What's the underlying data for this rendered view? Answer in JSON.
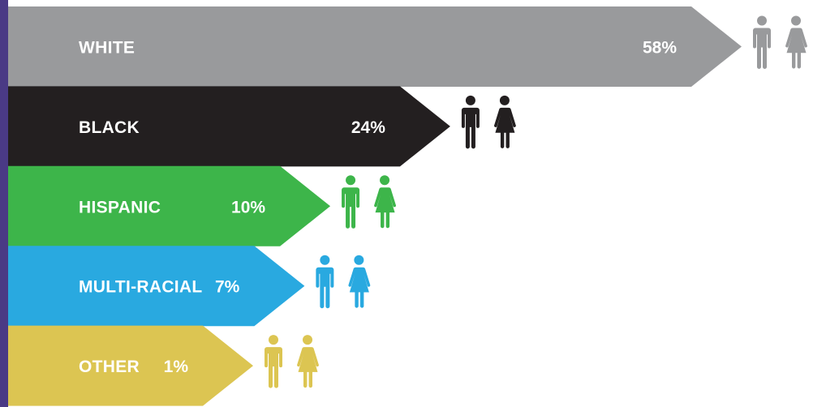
{
  "chart_data": {
    "type": "bar",
    "orientation": "horizontal",
    "unit": "%",
    "xlim": [
      0,
      58
    ],
    "categories": [
      "WHITE",
      "BLACK",
      "HISPANIC",
      "MULTI-RACIAL",
      "OTHER"
    ],
    "values": [
      58,
      24,
      10,
      7,
      1
    ],
    "value_labels": [
      "58%",
      "24%",
      "10%",
      "7%",
      "1%"
    ],
    "colors": [
      "#999a9c",
      "#231f20",
      "#3db54a",
      "#29a9e0",
      "#dcc552"
    ],
    "icons": [
      "man-icon",
      "woman-icon"
    ],
    "grid": false,
    "legend": "none"
  },
  "theme": {
    "accent": "#4a3a85",
    "background": "#ffffff"
  }
}
